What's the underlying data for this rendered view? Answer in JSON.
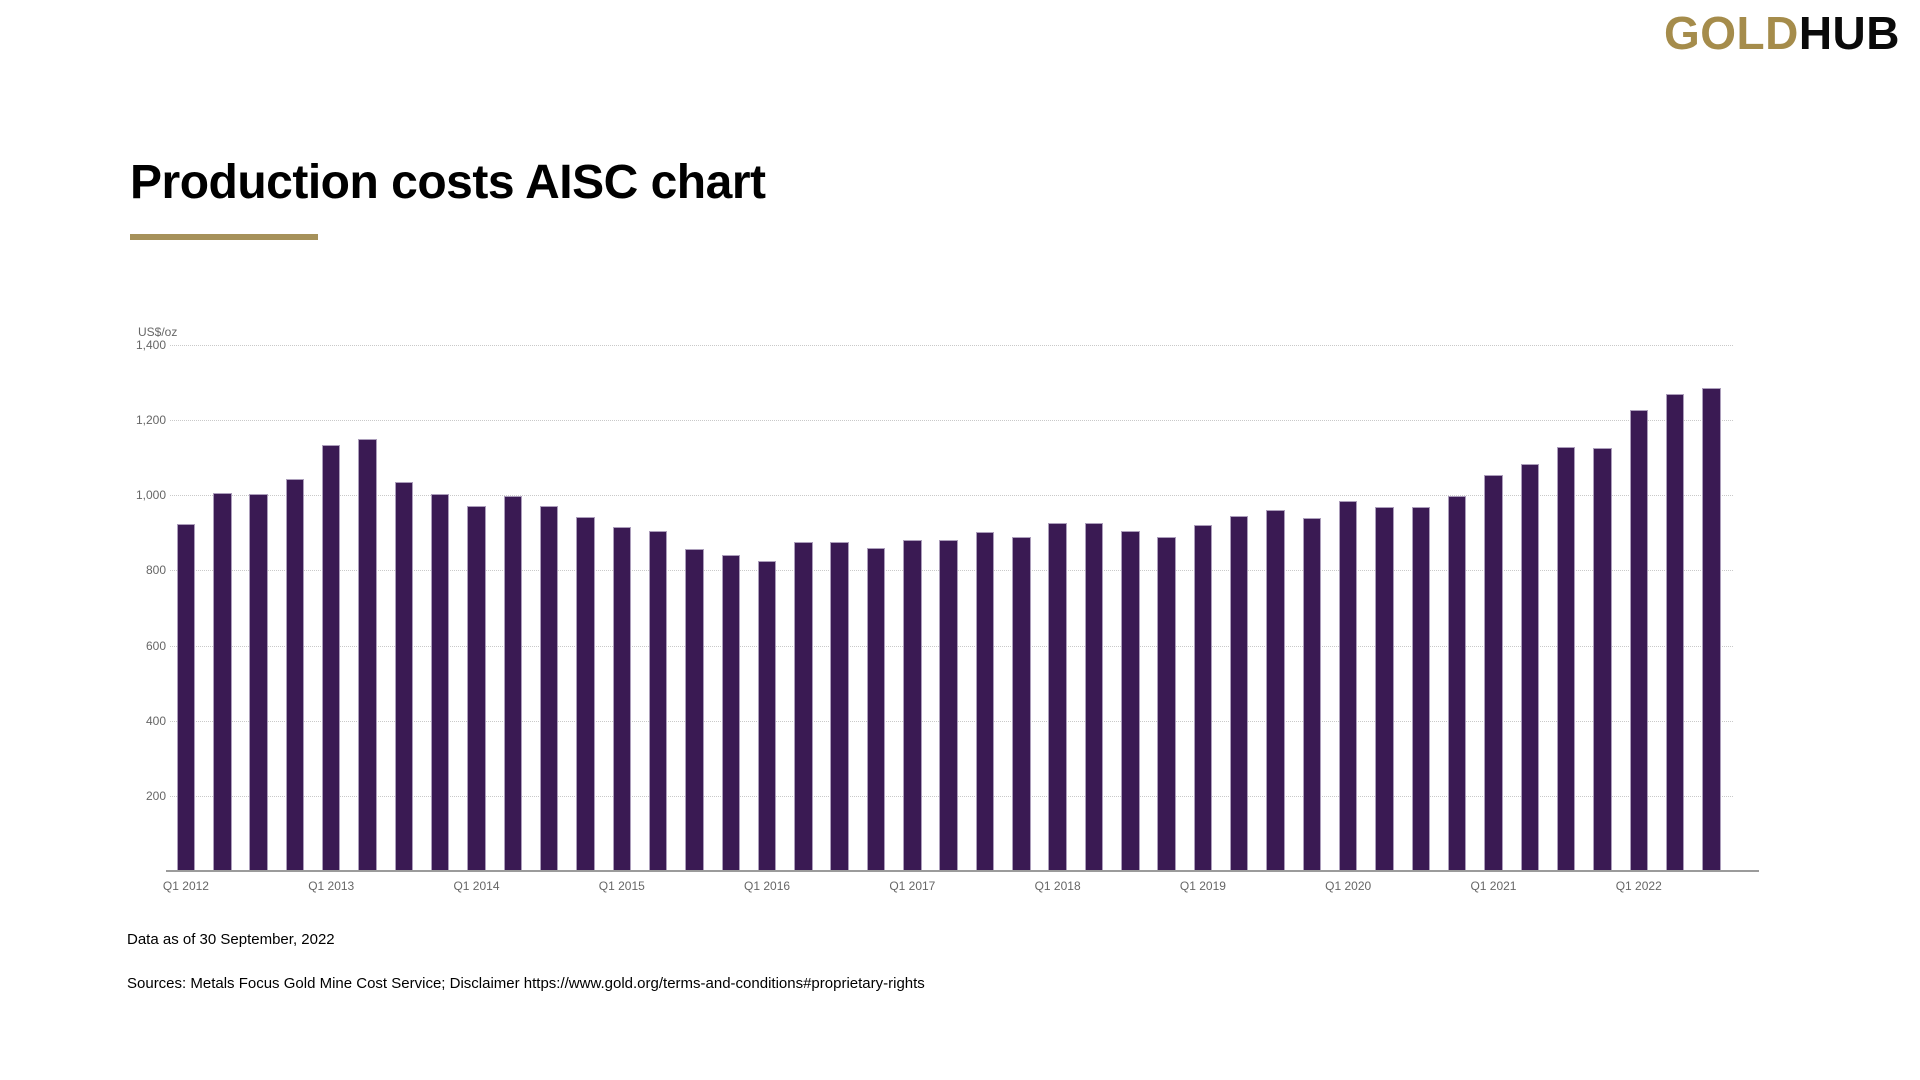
{
  "logo": {
    "gold": "GOLD",
    "hub": "HUB"
  },
  "title": "Production costs AISC chart",
  "brand_colors": {
    "accent_gold": "#A6915A",
    "bar_purple": "#3A1A53"
  },
  "footer": {
    "data_as_of": "Data as of 30 September, 2022",
    "sources": "Sources: Metals Focus Gold Mine Cost Service; Disclaimer https://www.gold.org/terms-and-conditions#proprietary-rights"
  },
  "chart_data": {
    "type": "bar",
    "title": "Production costs AISC chart",
    "ylabel": "US$/oz",
    "xlabel": "",
    "ylim": [
      0,
      1400
    ],
    "grid": "horizontal dotted",
    "legend": "none",
    "bar_color": "#3A1A53",
    "y_ticks": [
      200,
      400,
      600,
      800,
      1000,
      1200,
      1400
    ],
    "y_tick_labels": [
      "200",
      "400",
      "600",
      "800",
      "1,000",
      "1,200",
      "1,400"
    ],
    "x_tick_labels": [
      "Q1 2012",
      "Q1 2013",
      "Q1 2014",
      "Q1 2015",
      "Q1 2016",
      "Q1 2017",
      "Q1 2018",
      "Q1 2019",
      "Q1 2020",
      "Q1 2021",
      "Q1 2022"
    ],
    "categories": [
      "Q1 2012",
      "Q2 2012",
      "Q3 2012",
      "Q4 2012",
      "Q1 2013",
      "Q2 2013",
      "Q3 2013",
      "Q4 2013",
      "Q1 2014",
      "Q2 2014",
      "Q3 2014",
      "Q4 2014",
      "Q1 2015",
      "Q2 2015",
      "Q3 2015",
      "Q4 2015",
      "Q1 2016",
      "Q2 2016",
      "Q3 2016",
      "Q4 2016",
      "Q1 2017",
      "Q2 2017",
      "Q3 2017",
      "Q4 2017",
      "Q1 2018",
      "Q2 2018",
      "Q3 2018",
      "Q4 2018",
      "Q1 2019",
      "Q2 2019",
      "Q3 2019",
      "Q4 2019",
      "Q1 2020",
      "Q2 2020",
      "Q3 2020",
      "Q4 2020",
      "Q1 2021",
      "Q2 2021",
      "Q3 2021",
      "Q4 2021",
      "Q1 2022",
      "Q2 2022",
      "Q3 2022"
    ],
    "values": [
      925,
      1010,
      1007,
      1046,
      1136,
      1152,
      1039,
      1007,
      974,
      1001,
      973,
      944,
      917,
      908,
      860,
      845,
      828,
      878,
      878,
      863,
      883,
      884,
      905,
      891,
      928,
      929,
      908,
      891,
      923,
      947,
      964,
      943,
      988,
      972,
      971,
      1001,
      1057,
      1087,
      1132,
      1129,
      1231,
      1273,
      1288
    ]
  }
}
